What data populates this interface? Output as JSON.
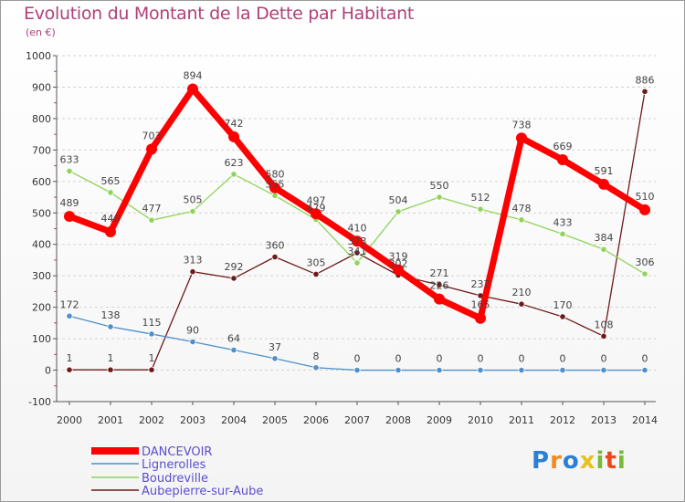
{
  "chart_data": {
    "type": "line",
    "title": "Evolution du Montant de la Dette par Habitant",
    "subtitle": "(en €)",
    "x": [
      "2000",
      "2001",
      "2002",
      "2003",
      "2004",
      "2005",
      "2006",
      "2007",
      "2008",
      "2009",
      "2010",
      "2011",
      "2012",
      "2013",
      "2014"
    ],
    "ylim": [
      -100,
      1000
    ],
    "yticks": [
      "-100",
      "0",
      "100",
      "200",
      "300",
      "400",
      "500",
      "600",
      "700",
      "800",
      "900",
      "1000"
    ],
    "grid": "horizontal dashed",
    "legend_position": "bottom-left",
    "series": [
      {
        "name": "DANCEVOIR",
        "color": "#ff0000",
        "values": [
          489,
          440,
          703,
          894,
          742,
          580,
          497,
          410,
          319,
          226,
          165,
          738,
          669,
          591,
          510
        ],
        "labels": [
          "489",
          "440",
          "703",
          "894",
          "742",
          "580",
          "497",
          "410",
          "319",
          "226",
          "165",
          "738",
          "669",
          "591",
          "510"
        ]
      },
      {
        "name": "Lignerolles",
        "color": "#4f8fca",
        "values": [
          172,
          138,
          115,
          90,
          64,
          37,
          8,
          0,
          0,
          0,
          0,
          0,
          0,
          0,
          0
        ],
        "labels": [
          "172",
          "138",
          "115",
          "90",
          "64",
          "37",
          "8",
          "0",
          "0",
          "0",
          "0",
          "0",
          "0",
          "0",
          "0"
        ]
      },
      {
        "name": "Boudreville",
        "color": "#8fd45a",
        "values": [
          633,
          565,
          477,
          505,
          623,
          555,
          479,
          341,
          504,
          550,
          512,
          478,
          433,
          384,
          306
        ],
        "labels": [
          "633",
          "565",
          "477",
          "505",
          "623",
          "555",
          "479",
          "341",
          "504",
          "550",
          "512",
          "478",
          "433",
          "384",
          "306"
        ]
      },
      {
        "name": "Aubepierre-sur-Aube",
        "color": "#6e1a1a",
        "values": [
          1,
          1,
          1,
          313,
          292,
          360,
          305,
          373,
          302,
          271,
          237,
          210,
          170,
          108,
          886
        ],
        "labels": [
          "1",
          "1",
          "1",
          "313",
          "292",
          "360",
          "305",
          "373",
          "302",
          "271",
          "237",
          "210",
          "170",
          "108",
          "886"
        ]
      }
    ]
  },
  "logo": {
    "letters": [
      "P",
      "r",
      "o",
      "x",
      "i",
      "t",
      "i"
    ],
    "colors": [
      "#2a7fd4",
      "#f28a1e",
      "#2a7fd4",
      "#e8c21a",
      "#7ab83a",
      "#e84a1e",
      "#7ab83a"
    ]
  }
}
